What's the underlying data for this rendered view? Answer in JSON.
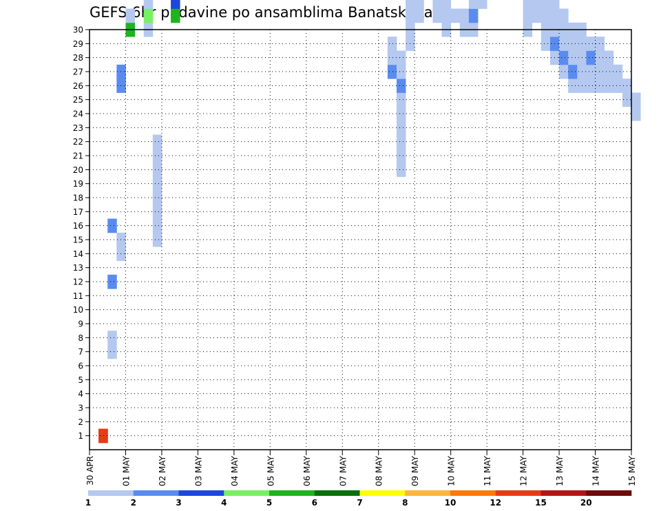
{
  "chart_data": {
    "type": "heatmap",
    "title": "GEFS 6hr padavine po ansamblima Banatski Karlovac",
    "xlabel": "",
    "ylabel": "",
    "x_ticks": [
      "30 APR",
      "01 MAY",
      "02 MAY",
      "03 MAY",
      "04 MAY",
      "05 MAY",
      "06 MAY",
      "07 MAY",
      "08 MAY",
      "09 MAY",
      "10 MAY",
      "11 MAY",
      "12 MAY",
      "13 MAY",
      "14 MAY",
      "15 MAY"
    ],
    "xlim_days": [
      0,
      15
    ],
    "steps_per_day": 4,
    "y_ticks": [
      1,
      2,
      3,
      4,
      5,
      6,
      7,
      8,
      9,
      10,
      11,
      12,
      13,
      14,
      15,
      16,
      17,
      18,
      19,
      20,
      21,
      22,
      23,
      24,
      25,
      26,
      27,
      28,
      29,
      30
    ],
    "ylim": [
      0,
      30
    ],
    "grid": true,
    "legend": {
      "placement": "bottom",
      "labels": [
        "1",
        "2",
        "3",
        "4",
        "5",
        "6",
        "7",
        "8",
        "10",
        "12",
        "15",
        "20"
      ],
      "colors": [
        "#b4c8f0",
        "#5a8cf0",
        "#1e46dc",
        "#78f064",
        "#1eb41e",
        "#0a6e0a",
        "#ffff00",
        "#ffb43c",
        "#ff780a",
        "#e63c14",
        "#b41414",
        "#6e0a0a"
      ]
    },
    "cells": [
      [
        1,
        1,
        1
      ],
      [
        1,
        2,
        1
      ],
      [
        1,
        9,
        1
      ],
      [
        1,
        10,
        1
      ],
      [
        2,
        1,
        7
      ],
      [
        2,
        1,
        8
      ],
      [
        2,
        2,
        12
      ],
      [
        2,
        2,
        16
      ],
      [
        3,
        1,
        14
      ],
      [
        3,
        1,
        15
      ],
      [
        3,
        2,
        26
      ],
      [
        3,
        2,
        27
      ],
      [
        4,
        5,
        30
      ],
      [
        4,
        1,
        31
      ],
      [
        4,
        2,
        37
      ],
      [
        4,
        3,
        38
      ],
      [
        4,
        5,
        40
      ],
      [
        4,
        1,
        42
      ],
      [
        4,
        4,
        43
      ],
      [
        4,
        2,
        44
      ],
      [
        6,
        1,
        30
      ],
      [
        6,
        4,
        31
      ],
      [
        6,
        1,
        32
      ],
      [
        7,
        1,
        15
      ],
      [
        7,
        1,
        16
      ],
      [
        7,
        1,
        17
      ],
      [
        7,
        1,
        18
      ],
      [
        7,
        1,
        19
      ],
      [
        7,
        1,
        20
      ],
      [
        7,
        1,
        21
      ],
      [
        7,
        1,
        22
      ],
      [
        7,
        1,
        37
      ],
      [
        7,
        4,
        38
      ],
      [
        7,
        1,
        39
      ],
      [
        7,
        3,
        43
      ],
      [
        7,
        3,
        44
      ],
      [
        7,
        4,
        45
      ],
      [
        7,
        1,
        46
      ],
      [
        7,
        1,
        47
      ],
      [
        7,
        3,
        50
      ],
      [
        7,
        2,
        51
      ],
      [
        7,
        4,
        54
      ],
      [
        7,
        1,
        55
      ],
      [
        7,
        1,
        56
      ],
      [
        8,
        2,
        37
      ],
      [
        8,
        1,
        38
      ],
      [
        8,
        2,
        41
      ],
      [
        8,
        1,
        45
      ],
      [
        8,
        1,
        47
      ],
      [
        8,
        2,
        48
      ],
      [
        8,
        1,
        49
      ],
      [
        8,
        1,
        51
      ],
      [
        8,
        1,
        52
      ],
      [
        8,
        2,
        53
      ],
      [
        8,
        1,
        54
      ],
      [
        9,
        5,
        31
      ],
      [
        9,
        3,
        32
      ],
      [
        9,
        1,
        33
      ],
      [
        9,
        2,
        34
      ],
      [
        9,
        1,
        35
      ],
      [
        9,
        4,
        36
      ],
      [
        9,
        5,
        38
      ],
      [
        9,
        3,
        39
      ],
      [
        10,
        2,
        39
      ],
      [
        10,
        4,
        40
      ],
      [
        10,
        1,
        41
      ],
      [
        10,
        1,
        43
      ],
      [
        10,
        2,
        44
      ],
      [
        10,
        3,
        45
      ],
      [
        10,
        4,
        46
      ],
      [
        11,
        1,
        41
      ],
      [
        11,
        1,
        42
      ],
      [
        11,
        1,
        43
      ],
      [
        11,
        1,
        44
      ],
      [
        11,
        3,
        45
      ],
      [
        11,
        6,
        46
      ],
      [
        11,
        1,
        47
      ],
      [
        11,
        2,
        48
      ],
      [
        11,
        1,
        49
      ],
      [
        11,
        1,
        50
      ],
      [
        11,
        1,
        51
      ],
      [
        11,
        1,
        52
      ],
      [
        11,
        1,
        53
      ],
      [
        11,
        2,
        54
      ],
      [
        11,
        1,
        55
      ],
      [
        11,
        1,
        56
      ],
      [
        11,
        1,
        57
      ],
      [
        11,
        1,
        58
      ],
      [
        11,
        1,
        59
      ],
      [
        12,
        1,
        40
      ],
      [
        12,
        2,
        41
      ],
      [
        12,
        2,
        42
      ],
      [
        12,
        2,
        43
      ],
      [
        12,
        2,
        44
      ],
      [
        12,
        2,
        45
      ],
      [
        12,
        2,
        46
      ],
      [
        12,
        1,
        47
      ],
      [
        12,
        3,
        48
      ],
      [
        12,
        1,
        49
      ],
      [
        12,
        1,
        51
      ],
      [
        12,
        1,
        52
      ],
      [
        12,
        1,
        53
      ],
      [
        12,
        1,
        54
      ],
      [
        12,
        1,
        55
      ],
      [
        12,
        2,
        56
      ],
      [
        12,
        2,
        57
      ],
      [
        13,
        2,
        40
      ],
      [
        13,
        1,
        41
      ],
      [
        13,
        3,
        42
      ],
      [
        13,
        3,
        43
      ],
      [
        13,
        1,
        44
      ],
      [
        13,
        2,
        45
      ],
      [
        13,
        2,
        46
      ],
      [
        13,
        4,
        48
      ],
      [
        13,
        1,
        49
      ],
      [
        13,
        1,
        51
      ],
      [
        13,
        2,
        52
      ],
      [
        13,
        1,
        53
      ],
      [
        13,
        1,
        54
      ],
      [
        13,
        1,
        55
      ],
      [
        13,
        2,
        56
      ],
      [
        13,
        3,
        57
      ],
      [
        14,
        1,
        53
      ],
      [
        14,
        1,
        54
      ],
      [
        14,
        1,
        55
      ],
      [
        14,
        1,
        56
      ],
      [
        15,
        1,
        53
      ],
      [
        15,
        1,
        54
      ],
      [
        15,
        1,
        55
      ],
      [
        15,
        1,
        56
      ],
      [
        15,
        1,
        57
      ],
      [
        16,
        1,
        54
      ],
      [
        16,
        1,
        55
      ],
      [
        16,
        1,
        56
      ],
      [
        17,
        2,
        54
      ],
      [
        17,
        1,
        55
      ],
      [
        18,
        1,
        50
      ],
      [
        18,
        1,
        51
      ],
      [
        18,
        3,
        52
      ],
      [
        18,
        3,
        53
      ],
      [
        18,
        2,
        54
      ],
      [
        18,
        1,
        55
      ],
      [
        19,
        1,
        51
      ],
      [
        19,
        2,
        52
      ],
      [
        19,
        1,
        53
      ],
      [
        19,
        2,
        54
      ],
      [
        19,
        1,
        55
      ],
      [
        20,
        1,
        52
      ],
      [
        20,
        2,
        53
      ],
      [
        20,
        1,
        54
      ],
      [
        21,
        1,
        54
      ],
      [
        22,
        2,
        40
      ],
      [
        22,
        2,
        41
      ],
      [
        22,
        2,
        42
      ],
      [
        22,
        3,
        43
      ],
      [
        22,
        2,
        44
      ],
      [
        22,
        3,
        45
      ],
      [
        22,
        2,
        46
      ],
      [
        22,
        2,
        47
      ],
      [
        22,
        3,
        48
      ],
      [
        23,
        3,
        35
      ],
      [
        23,
        1,
        36
      ],
      [
        23,
        1,
        37
      ],
      [
        23,
        1,
        38
      ],
      [
        23,
        1,
        39
      ],
      [
        23,
        1,
        40
      ],
      [
        23,
        3,
        41
      ],
      [
        23,
        3,
        42
      ],
      [
        23,
        2,
        43
      ],
      [
        23,
        1,
        44
      ],
      [
        23,
        1,
        45
      ],
      [
        23,
        1,
        46
      ],
      [
        23,
        1,
        47
      ],
      [
        23,
        1,
        48
      ],
      [
        23,
        1,
        49
      ],
      [
        23,
        1,
        50
      ],
      [
        23,
        1,
        51
      ],
      [
        23,
        1,
        52
      ],
      [
        23,
        1,
        53
      ],
      [
        24,
        2,
        43
      ],
      [
        24,
        3,
        44
      ],
      [
        24,
        2,
        45
      ],
      [
        25,
        1,
        36
      ],
      [
        25,
        2,
        37
      ],
      [
        25,
        1,
        38
      ],
      [
        25,
        1,
        39
      ],
      [
        25,
        1,
        40
      ],
      [
        25,
        1,
        41
      ],
      [
        25,
        1,
        42
      ],
      [
        25,
        1,
        43
      ],
      [
        25,
        1,
        44
      ],
      [
        26,
        2,
        40
      ],
      [
        26,
        5,
        41
      ],
      [
        26,
        1,
        42
      ],
      [
        26,
        2,
        43
      ],
      [
        26,
        2,
        44
      ],
      [
        26,
        1,
        45
      ],
      [
        26,
        2,
        46
      ],
      [
        26,
        1,
        47
      ],
      [
        27,
        4,
        44
      ],
      [
        27,
        5,
        45
      ],
      [
        27,
        1,
        46
      ],
      [
        27,
        1,
        47
      ],
      [
        27,
        1,
        48
      ],
      [
        27,
        1,
        49
      ],
      [
        27,
        1,
        50
      ],
      [
        27,
        1,
        51
      ],
      [
        27,
        1,
        52
      ],
      [
        28,
        8,
        46
      ],
      [
        28,
        2,
        47
      ],
      [
        28,
        1,
        48
      ],
      [
        28,
        2,
        49
      ],
      [
        28,
        1,
        50
      ],
      [
        28,
        1,
        51
      ],
      [
        29,
        2,
        47
      ],
      [
        29,
        1,
        48
      ],
      [
        29,
        1,
        49
      ],
      [
        29,
        1,
        50
      ],
      [
        29,
        1,
        51
      ],
      [
        29,
        1,
        52
      ],
      [
        30,
        1,
        50
      ],
      [
        30,
        1,
        51
      ],
      [
        31,
        1,
        49
      ],
      [
        31,
        1,
        50
      ],
      [
        33,
        2,
        27
      ],
      [
        33,
        1,
        28
      ],
      [
        33,
        1,
        29
      ],
      [
        34,
        1,
        20
      ],
      [
        34,
        1,
        21
      ],
      [
        34,
        1,
        22
      ],
      [
        34,
        1,
        23
      ],
      [
        34,
        1,
        24
      ],
      [
        34,
        1,
        25
      ],
      [
        34,
        2,
        26
      ],
      [
        34,
        1,
        27
      ],
      [
        34,
        1,
        28
      ],
      [
        35,
        1,
        29
      ],
      [
        35,
        1,
        30
      ],
      [
        35,
        1,
        31
      ],
      [
        35,
        1,
        32
      ],
      [
        36,
        1,
        31
      ],
      [
        36,
        1,
        32
      ],
      [
        36,
        2,
        33
      ],
      [
        36,
        2,
        34
      ],
      [
        36,
        1,
        35
      ],
      [
        37,
        1,
        33
      ],
      [
        37,
        1,
        34
      ],
      [
        38,
        1,
        31
      ],
      [
        38,
        1,
        32
      ],
      [
        38,
        1,
        33
      ],
      [
        38,
        1,
        34
      ],
      [
        38,
        1,
        35
      ],
      [
        38,
        1,
        36
      ],
      [
        39,
        1,
        30
      ],
      [
        39,
        1,
        31
      ],
      [
        39,
        1,
        32
      ],
      [
        39,
        1,
        33
      ],
      [
        39,
        1,
        34
      ],
      [
        39,
        1,
        35
      ],
      [
        39,
        1,
        36
      ],
      [
        40,
        1,
        31
      ],
      [
        41,
        1,
        30
      ],
      [
        41,
        1,
        31
      ],
      [
        42,
        1,
        30
      ],
      [
        42,
        2,
        31
      ],
      [
        42,
        1,
        32
      ],
      [
        43,
        1,
        32
      ],
      [
        43,
        1,
        33
      ],
      [
        43,
        1,
        34
      ],
      [
        44,
        1,
        33
      ],
      [
        44,
        1,
        34
      ],
      [
        44,
        1,
        35
      ],
      [
        45,
        1,
        34
      ],
      [
        45,
        1,
        35
      ],
      [
        46,
        1,
        34
      ],
      [
        46,
        1,
        36
      ],
      [
        47,
        1,
        35
      ],
      [
        48,
        1,
        30
      ],
      [
        48,
        1,
        31
      ],
      [
        48,
        1,
        32
      ],
      [
        48,
        1,
        33
      ],
      [
        48,
        1,
        34
      ],
      [
        48,
        1,
        35
      ],
      [
        48,
        1,
        36
      ],
      [
        49,
        1,
        31
      ],
      [
        49,
        1,
        32
      ],
      [
        49,
        1,
        33
      ],
      [
        49,
        1,
        34
      ],
      [
        49,
        1,
        35
      ],
      [
        49,
        1,
        36
      ],
      [
        50,
        1,
        29
      ],
      [
        50,
        1,
        30
      ],
      [
        50,
        1,
        31
      ],
      [
        50,
        1,
        32
      ],
      [
        50,
        1,
        33
      ],
      [
        50,
        1,
        34
      ],
      [
        50,
        1,
        35
      ],
      [
        51,
        1,
        28
      ],
      [
        51,
        2,
        29
      ],
      [
        51,
        1,
        30
      ],
      [
        51,
        1,
        31
      ],
      [
        51,
        1,
        32
      ],
      [
        51,
        1,
        33
      ],
      [
        52,
        1,
        27
      ],
      [
        52,
        2,
        28
      ],
      [
        52,
        1,
        29
      ],
      [
        52,
        1,
        30
      ],
      [
        52,
        1,
        31
      ],
      [
        53,
        1,
        26
      ],
      [
        53,
        2,
        27
      ],
      [
        53,
        1,
        28
      ],
      [
        53,
        1,
        29
      ],
      [
        53,
        1,
        30
      ],
      [
        54,
        1,
        26
      ],
      [
        54,
        1,
        27
      ],
      [
        54,
        1,
        28
      ],
      [
        54,
        1,
        29
      ],
      [
        54,
        1,
        30
      ],
      [
        55,
        1,
        26
      ],
      [
        55,
        1,
        27
      ],
      [
        55,
        2,
        28
      ],
      [
        55,
        1,
        29
      ],
      [
        56,
        1,
        26
      ],
      [
        56,
        1,
        27
      ],
      [
        56,
        1,
        28
      ],
      [
        56,
        1,
        29
      ],
      [
        57,
        1,
        26
      ],
      [
        57,
        1,
        27
      ],
      [
        57,
        1,
        28
      ],
      [
        58,
        1,
        26
      ],
      [
        58,
        1,
        27
      ],
      [
        59,
        1,
        25
      ],
      [
        59,
        1,
        26
      ],
      [
        60,
        1,
        24
      ],
      [
        60,
        1,
        25
      ]
    ]
  }
}
